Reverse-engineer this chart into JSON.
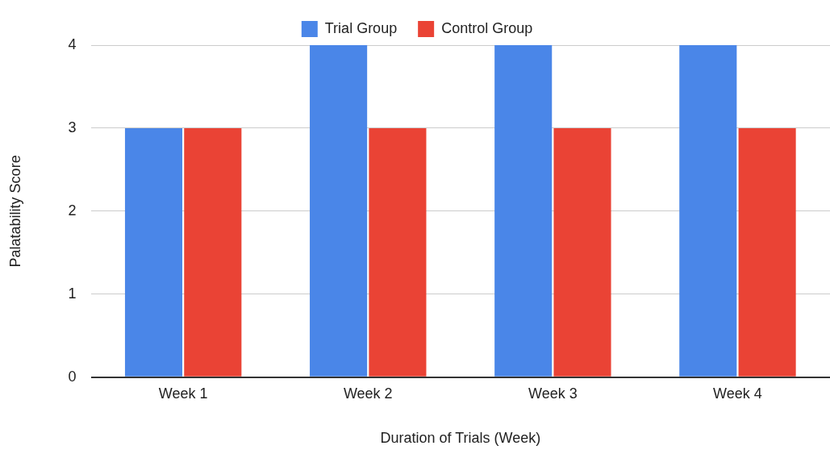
{
  "chart_data": {
    "type": "bar",
    "xlabel": "Duration of Trials (Week)",
    "ylabel": "Palatability Score",
    "categories": [
      "Week 1",
      "Week 2",
      "Week 3",
      "Week 4"
    ],
    "series": [
      {
        "name": "Trial Group",
        "color": "#4a86e8",
        "values": [
          3,
          4,
          4,
          4
        ]
      },
      {
        "name": "Control Group",
        "color": "#ea4335",
        "values": [
          3,
          3,
          3,
          3
        ]
      }
    ],
    "ylim": [
      0,
      4
    ],
    "yticks": [
      0,
      1,
      2,
      3,
      4
    ],
    "grid": "y",
    "legend": "top"
  }
}
